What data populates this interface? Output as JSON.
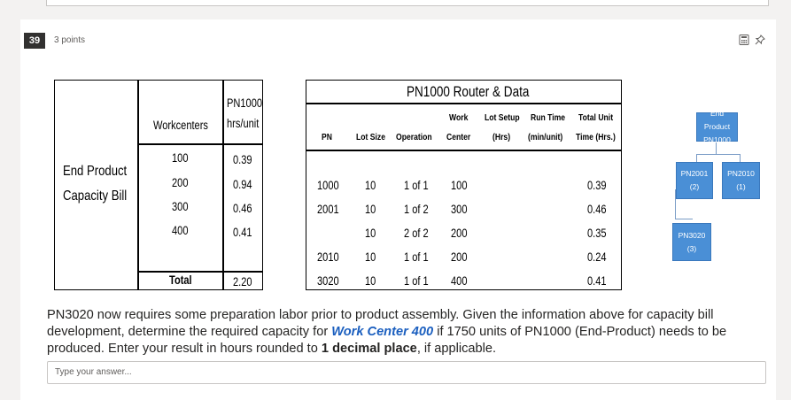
{
  "question": {
    "number": "39",
    "points": "3 points",
    "text_1": "PN3020 now requires some preparation labor prior to product assembly.  Given the information above for capacity bill development, determine the required capacity for ",
    "work_center": "Work Center 400",
    "text_2": " if 1750 units of PN1000 (End-Product) needs to be produced.  Enter your result in hours rounded to ",
    "decimal": "1 decimal place",
    "text_3": ", if applicable.",
    "answer_placeholder": "Type your answer..."
  },
  "toolbar": {
    "calculator_icon": "calculator-icon",
    "pin_icon": "pin-icon"
  },
  "capacity_bill": {
    "label_line1": "End Product",
    "label_line2": "Capacity Bill",
    "col_workcenters": "Workcenters",
    "col_hrs_line1": "PN1000",
    "col_hrs_line2": "hrs/unit",
    "rows": [
      {
        "wc": "100",
        "hrs": "0.39"
      },
      {
        "wc": "200",
        "hrs": "0.94"
      },
      {
        "wc": "300",
        "hrs": "0.46"
      },
      {
        "wc": "400",
        "hrs": "0.41"
      }
    ],
    "total_label": "Total",
    "total_value": "2.20"
  },
  "router": {
    "title": "PN1000 Router & Data",
    "headers": {
      "pn": "PN",
      "lot_size": "Lot Size",
      "operation": "Operation",
      "work_center_1": "Work",
      "work_center_2": "Center",
      "lot_setup_1": "Lot Setup",
      "lot_setup_2": "(Hrs)",
      "run_time_1": "Run Time",
      "run_time_2": "(min/unit)",
      "total_unit_1": "Total Unit",
      "total_unit_2": "Time (Hrs.)"
    },
    "rows": [
      {
        "pn": "1000",
        "lot": "10",
        "op": "1 of 1",
        "wc": "100",
        "tut": "0.39"
      },
      {
        "pn": "2001",
        "lot": "10",
        "op": "1 of 2",
        "wc": "300",
        "tut": "0.46"
      },
      {
        "pn": "",
        "lot": "10",
        "op": "2 of 2",
        "wc": "200",
        "tut": "0.35"
      },
      {
        "pn": "2010",
        "lot": "10",
        "op": "1 of 1",
        "wc": "200",
        "tut": "0.24"
      },
      {
        "pn": "3020",
        "lot": "10",
        "op": "1 of 1",
        "wc": "400",
        "tut": "0.41"
      }
    ]
  },
  "product_tree": {
    "root_line1": "End Product",
    "root_line2": "PN1000",
    "pn2001_name": "PN2001",
    "pn2001_qty": "(2)",
    "pn2010_name": "PN2010",
    "pn2010_qty": "(1)",
    "pn3020_name": "PN3020",
    "pn3020_qty": "(3)",
    "node_color": "#4a8fd6"
  }
}
